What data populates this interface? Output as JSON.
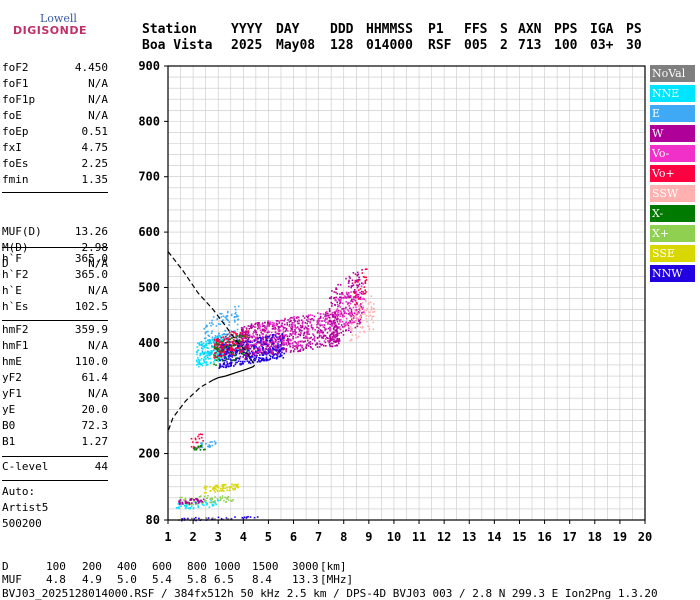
{
  "logo": {
    "line1": "Lowell",
    "line2": "DIGISONDE"
  },
  "header": {
    "labels": [
      "Station",
      "YYYY",
      "DAY",
      "DDD",
      "HHMMSS",
      "P1",
      "FFS",
      "S",
      "AXN",
      "PPS",
      "IGA",
      "PS"
    ],
    "values": [
      "Boa Vista",
      "2025",
      "May08",
      "128",
      "014000",
      "RSF",
      "005",
      "2",
      "713",
      "100",
      "03+",
      "30"
    ]
  },
  "params": {
    "g1": [
      {
        "name": "foF2",
        "value": "4.450"
      },
      {
        "name": "foF1",
        "value": "N/A"
      },
      {
        "name": "foF1p",
        "value": "N/A"
      },
      {
        "name": "foE",
        "value": "N/A"
      },
      {
        "name": "foEp",
        "value": "0.51"
      },
      {
        "name": "fxI",
        "value": "4.75"
      },
      {
        "name": "foEs",
        "value": "2.25"
      },
      {
        "name": "fmin",
        "value": "1.35"
      }
    ],
    "g2": [
      {
        "name": "MUF(D)",
        "value": "13.26"
      },
      {
        "name": "M(D)",
        "value": "2.98"
      },
      {
        "name": "D",
        "value": "N/A"
      }
    ],
    "g3": [
      {
        "name": "h`F",
        "value": "365.0"
      },
      {
        "name": "h`F2",
        "value": "365.0"
      },
      {
        "name": "h`E",
        "value": "N/A"
      },
      {
        "name": "h`Es",
        "value": "102.5"
      }
    ],
    "g4": [
      {
        "name": "hmF2",
        "value": "359.9"
      },
      {
        "name": "hmF1",
        "value": "N/A"
      },
      {
        "name": "hmE",
        "value": "110.0"
      },
      {
        "name": "yF2",
        "value": "61.4"
      },
      {
        "name": "yF1",
        "value": "N/A"
      },
      {
        "name": "yE",
        "value": "20.0"
      },
      {
        "name": "B0",
        "value": "72.3"
      },
      {
        "name": "B1",
        "value": "1.27"
      }
    ],
    "g5": [
      {
        "name": "C-level",
        "value": "44"
      }
    ]
  },
  "auto": {
    "line1": "Auto:",
    "line2": "Artist5",
    "line3": "500200"
  },
  "legend": [
    {
      "label": "NoVal",
      "color": "#7f7f7f"
    },
    {
      "label": "NNE",
      "color": "#00e5ff"
    },
    {
      "label": "E",
      "color": "#3fa9f5"
    },
    {
      "label": "W",
      "color": "#b0009a"
    },
    {
      "label": "Vo-",
      "color": "#f030c8"
    },
    {
      "label": "Vo+",
      "color": "#ff0040"
    },
    {
      "label": "SSW",
      "color": "#ffb0b0"
    },
    {
      "label": "X-",
      "color": "#007a00"
    },
    {
      "label": "X+",
      "color": "#90d050"
    },
    {
      "label": "SSE",
      "color": "#d8d800"
    },
    {
      "label": "NNW",
      "color": "#2000e0"
    }
  ],
  "bottom": {
    "d_label": "D",
    "d_values": [
      "100",
      "200",
      "400",
      "600",
      "800",
      "1000",
      "1500",
      "3000"
    ],
    "d_unit": "[km]",
    "muf_label": "MUF",
    "muf_values": [
      "4.8",
      "4.9",
      "5.0",
      "5.4",
      "5.8",
      "6.5",
      "8.4",
      "13.3"
    ],
    "muf_unit": "[MHz]",
    "footer": "BVJ03_2025128014000.RSF / 384fx512h 50 kHz 2.5 km / DPS-4D BVJ03 003 / 2.8 N 299.3 E Ion2Png 1.3.20"
  },
  "chart_data": {
    "type": "scatter",
    "x_ticks": [
      "1",
      "2",
      "3",
      "4",
      "5",
      "6",
      "7",
      "8",
      "9",
      "10",
      "11",
      "12",
      "13",
      "14",
      "15",
      "16",
      "17",
      "18",
      "19",
      "20"
    ],
    "y_ticks": [
      "80",
      "200",
      "300",
      "400",
      "500",
      "600",
      "700",
      "800",
      "900"
    ],
    "xlim": [
      1,
      20
    ],
    "ylim": [
      80,
      900
    ],
    "grid": true,
    "legend_position": "right",
    "profile_solid": [
      [
        4.45,
        360
      ],
      [
        4.4,
        357
      ],
      [
        4.1,
        352
      ],
      [
        3.7,
        346
      ],
      [
        3.3,
        340
      ],
      [
        3.0,
        337
      ],
      [
        2.8,
        333
      ]
    ],
    "profile_dashed": [
      [
        2.8,
        333
      ],
      [
        2.3,
        320
      ],
      [
        1.7,
        295
      ],
      [
        1.2,
        265
      ],
      [
        1.0,
        240
      ]
    ],
    "profile_upper_dashed": [
      [
        1.0,
        565
      ],
      [
        1.6,
        530
      ],
      [
        2.2,
        490
      ],
      [
        2.8,
        460
      ],
      [
        3.3,
        430
      ],
      [
        3.7,
        405
      ],
      [
        4.1,
        385
      ],
      [
        4.45,
        360
      ]
    ],
    "echo_regions": [
      {
        "color": "#00e5ff",
        "n": 220,
        "fmin": 2.1,
        "fmax": 3.4,
        "hmin": 355,
        "hmax": 420
      },
      {
        "color": "#3fa9f5",
        "n": 140,
        "fmin": 2.3,
        "fmax": 3.8,
        "hmin": 370,
        "hmax": 470
      },
      {
        "color": "#2000e0",
        "n": 520,
        "fmin": 3.0,
        "fmax": 5.6,
        "hmin": 355,
        "hmax": 420
      },
      {
        "color": "#ff0040",
        "n": 160,
        "fmin": 2.8,
        "fmax": 4.2,
        "hmin": 370,
        "hmax": 430
      },
      {
        "color": "#007a00",
        "n": 70,
        "fmin": 2.8,
        "fmax": 4.2,
        "hmin": 360,
        "hmax": 420
      },
      {
        "color": "#b0009a",
        "n": 560,
        "fmin": 3.8,
        "fmax": 7.8,
        "hmin": 370,
        "hmax": 460
      },
      {
        "color": "#f030c8",
        "n": 220,
        "fmin": 4.2,
        "fmax": 7.6,
        "hmin": 380,
        "hmax": 460
      },
      {
        "color": "#b0009a",
        "n": 220,
        "fmin": 7.4,
        "fmax": 8.7,
        "hmin": 390,
        "hmax": 540
      },
      {
        "color": "#f030c8",
        "n": 120,
        "fmin": 7.6,
        "fmax": 8.8,
        "hmin": 420,
        "hmax": 510
      },
      {
        "color": "#ffb0b0",
        "n": 80,
        "fmin": 8.2,
        "fmax": 9.2,
        "hmin": 400,
        "hmax": 490
      },
      {
        "color": "#ff0040",
        "n": 30,
        "fmin": 8.4,
        "fmax": 8.9,
        "hmin": 470,
        "hmax": 540
      },
      {
        "color": "#00e5ff",
        "n": 60,
        "fmin": 1.3,
        "fmax": 3.0,
        "hmin": 100,
        "hmax": 118
      },
      {
        "color": "#d8d800",
        "n": 70,
        "fmin": 2.4,
        "fmax": 3.8,
        "hmin": 130,
        "hmax": 148
      },
      {
        "color": "#90d050",
        "n": 60,
        "fmin": 1.4,
        "fmax": 3.6,
        "hmin": 108,
        "hmax": 128
      },
      {
        "color": "#b0009a",
        "n": 40,
        "fmin": 1.4,
        "fmax": 2.4,
        "hmin": 108,
        "hmax": 122
      },
      {
        "color": "#ff0040",
        "n": 20,
        "fmin": 1.9,
        "fmax": 2.4,
        "hmin": 205,
        "hmax": 240
      },
      {
        "color": "#007a00",
        "n": 12,
        "fmin": 1.9,
        "fmax": 2.5,
        "hmin": 205,
        "hmax": 218
      },
      {
        "color": "#3fa9f5",
        "n": 20,
        "fmin": 2.2,
        "fmax": 2.9,
        "hmin": 210,
        "hmax": 225
      },
      {
        "color": "#2000e0",
        "n": 30,
        "fmin": 1.5,
        "fmax": 4.6,
        "hmin": 80,
        "hmax": 88
      },
      {
        "color": "#7f7f7f",
        "n": 15,
        "fmin": 1.3,
        "fmax": 3.5,
        "hmin": 80,
        "hmax": 86
      }
    ]
  }
}
